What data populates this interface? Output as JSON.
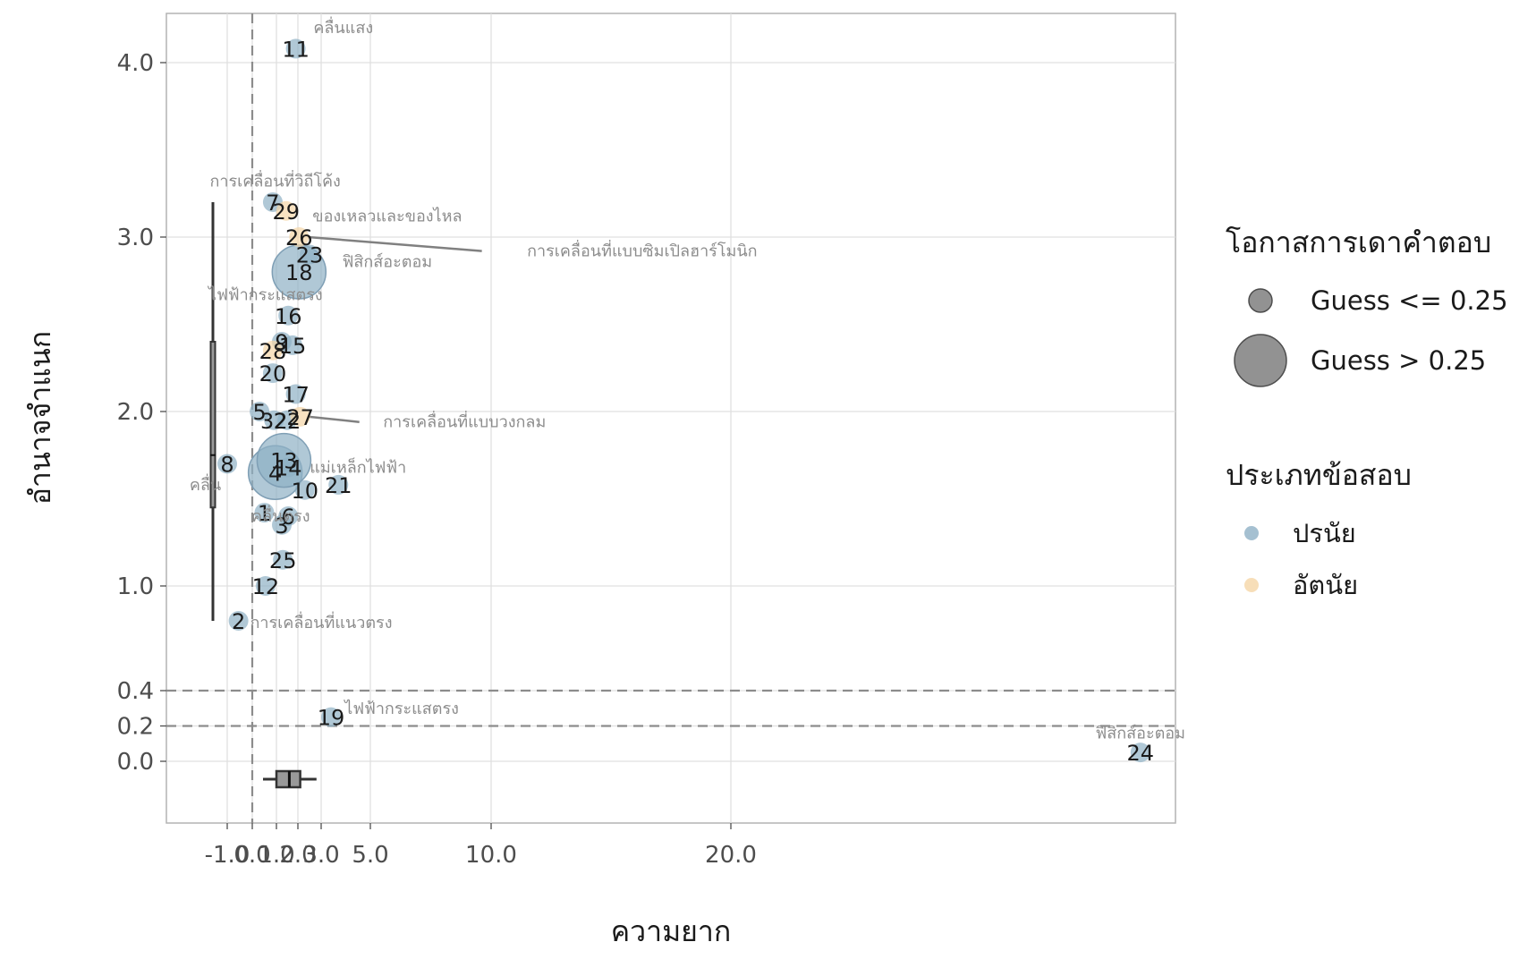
{
  "chart_data": {
    "type": "scatter",
    "xlabel": "ความยาก",
    "ylabel": "อำนาจจำแนก",
    "x_ticks": [
      -1.0,
      0.0,
      1.0,
      2.0,
      3.0,
      5.0,
      10.0,
      20.0
    ],
    "x_tick_labels": [
      "-1.0",
      "0.0",
      "1.0",
      "2.0",
      "3.0",
      "5.0",
      "10.0",
      "20.0"
    ],
    "y_ticks": [
      0.0,
      0.2,
      0.4,
      1.0,
      2.0,
      3.0,
      4.0
    ],
    "y_tick_labels": [
      "0.0",
      "0.2",
      "0.4",
      "1.0",
      "2.0",
      "3.0",
      "4.0"
    ],
    "y_break": 0.4,
    "xlim": [
      -3.5,
      39
    ],
    "ylim": [
      -0.35,
      4.28
    ],
    "ref_lines": {
      "vertical_x": 0.0,
      "horizontal_y": [
        0.2,
        0.4
      ]
    },
    "colors": {
      "ปรนัย": "#8fb0c5",
      "อัตนัย": "#f5d6a6"
    },
    "legend": {
      "size_title": "โอกาสการเดาคำตอบ",
      "size_items": [
        "Guess <= 0.25",
        "Guess > 0.25"
      ],
      "type_title": "ประเภทข้อสอบ",
      "type_items": [
        "ปรนัย",
        "อัตนัย"
      ],
      "placement": "right"
    },
    "points": [
      {
        "id": "1",
        "x": 0.5,
        "y": 1.42,
        "type": "ปรนัย",
        "big": false
      },
      {
        "id": "2",
        "x": -0.55,
        "y": 0.8,
        "type": "ปรนัย",
        "big": false
      },
      {
        "id": "3",
        "x": 1.25,
        "y": 1.35,
        "type": "ปรนัย",
        "big": false
      },
      {
        "id": "4",
        "x": 0.95,
        "y": 1.65,
        "type": "ปรนัย",
        "big": true
      },
      {
        "id": "5",
        "x": 0.3,
        "y": 2.0,
        "type": "ปรนัย",
        "big": false
      },
      {
        "id": "6",
        "x": 1.55,
        "y": 1.4,
        "type": "ปรนัย",
        "big": false
      },
      {
        "id": "7",
        "x": 0.85,
        "y": 3.2,
        "type": "ปรนัย",
        "big": false
      },
      {
        "id": "8",
        "x": -1.0,
        "y": 1.7,
        "type": "ปรนัย",
        "big": false
      },
      {
        "id": "9",
        "x": 1.25,
        "y": 2.4,
        "type": "ปรนัย",
        "big": false
      },
      {
        "id": "10",
        "x": 2.3,
        "y": 1.55,
        "type": "ปรนัย",
        "big": false
      },
      {
        "id": "11",
        "x": 1.9,
        "y": 4.08,
        "type": "ปรนัย",
        "big": false
      },
      {
        "id": "12",
        "x": 0.55,
        "y": 1.0,
        "type": "ปรนัย",
        "big": false
      },
      {
        "id": "13",
        "x": 1.35,
        "y": 1.72,
        "type": "ปรนัย",
        "big": true
      },
      {
        "id": "14",
        "x": 1.55,
        "y": 1.68,
        "type": "ปรนัย",
        "big": false
      },
      {
        "id": "15",
        "x": 1.75,
        "y": 2.38,
        "type": "ปรนัย",
        "big": false
      },
      {
        "id": "16",
        "x": 1.55,
        "y": 2.55,
        "type": "ปรนัย",
        "big": false
      },
      {
        "id": "17",
        "x": 1.9,
        "y": 2.1,
        "type": "ปรนัย",
        "big": false
      },
      {
        "id": "18",
        "x": 2.05,
        "y": 2.8,
        "type": "ปรนัย",
        "big": true
      },
      {
        "id": "19",
        "x": 3.4,
        "y": 0.25,
        "type": "ปรนัย",
        "big": false
      },
      {
        "id": "20",
        "x": 0.85,
        "y": 2.22,
        "type": "ปรนัย",
        "big": false
      },
      {
        "id": "21",
        "x": 3.7,
        "y": 1.58,
        "type": "ปรนัย",
        "big": false
      },
      {
        "id": "22",
        "x": 1.5,
        "y": 1.95,
        "type": "ปรนัย",
        "big": false
      },
      {
        "id": "23",
        "x": 2.5,
        "y": 2.9,
        "type": "ปรนัย",
        "big": false
      },
      {
        "id": "24",
        "x": 37.5,
        "y": 0.05,
        "type": "ปรนัย",
        "big": false
      },
      {
        "id": "25",
        "x": 1.3,
        "y": 1.15,
        "type": "ปรนัย",
        "big": false
      },
      {
        "id": "26",
        "x": 2.05,
        "y": 3.0,
        "type": "อัตนัย",
        "big": false
      },
      {
        "id": "27",
        "x": 2.1,
        "y": 1.97,
        "type": "อัตนัย",
        "big": false
      },
      {
        "id": "28",
        "x": 0.85,
        "y": 2.35,
        "type": "อัตนัย",
        "big": false
      },
      {
        "id": "29",
        "x": 1.45,
        "y": 3.15,
        "type": "อัตนัย",
        "big": false
      },
      {
        "id": "32",
        "x": 0.9,
        "y": 1.95,
        "type": "ปรนัย",
        "big": false
      }
    ],
    "topic_labels": [
      {
        "text": "คลื่นแสง",
        "x": 3.9,
        "y": 4.2,
        "point": "11",
        "leader": false
      },
      {
        "text": "การเคลื่อนที่วิถีโค้ง",
        "x": 0.95,
        "y": 3.32,
        "point": "7",
        "leader": false
      },
      {
        "text": "ของเหลวและของไหล",
        "x": 5.7,
        "y": 3.12,
        "point": "29",
        "leader": false
      },
      {
        "text": "การเคลื่อนที่แบบซิมเปิลฮาร์โมนิก",
        "x": 16.3,
        "y": 2.92,
        "point": "26",
        "leader": true
      },
      {
        "text": "ฟิสิกส์อะตอม",
        "x": 5.7,
        "y": 2.86,
        "point": "18",
        "leader": false
      },
      {
        "text": "ไฟฟ้ากระแสตรง",
        "x": 0.55,
        "y": 2.67,
        "point": "16",
        "leader": false
      },
      {
        "text": "การเคลื่อนที่แบบวงกลม",
        "x": 8.9,
        "y": 1.94,
        "point": "27",
        "leader": true
      },
      {
        "text": "แม่เหล็กไฟฟ้า",
        "x": 4.5,
        "y": 1.68,
        "point": "14",
        "leader": false
      },
      {
        "text": "คลื่น",
        "x": -1.9,
        "y": 1.58,
        "point": "8",
        "leader": false
      },
      {
        "text": "คลื่นตรง",
        "x": 1.2,
        "y": 1.4,
        "point": "1",
        "leader": false
      },
      {
        "text": "การเคลื่อนที่แนวตรง",
        "x": 3.0,
        "y": 0.79,
        "point": "2",
        "leader": false
      },
      {
        "text": "ไฟฟ้ากระแสตรง",
        "x": 6.3,
        "y": 0.3,
        "point": "19",
        "leader": false
      },
      {
        "text": "ฟิสิกส์อะตอม",
        "x": 37.5,
        "y": 0.16,
        "point": "24",
        "leader": false
      }
    ],
    "marginal_boxplot_y": {
      "min": 0.8,
      "q1": 1.45,
      "median": 1.75,
      "q3": 2.4,
      "max": 3.2
    },
    "marginal_boxplot_x": {
      "min": 0.5,
      "q1": 1.0,
      "median": 1.6,
      "q3": 2.1,
      "max": 2.8
    }
  }
}
